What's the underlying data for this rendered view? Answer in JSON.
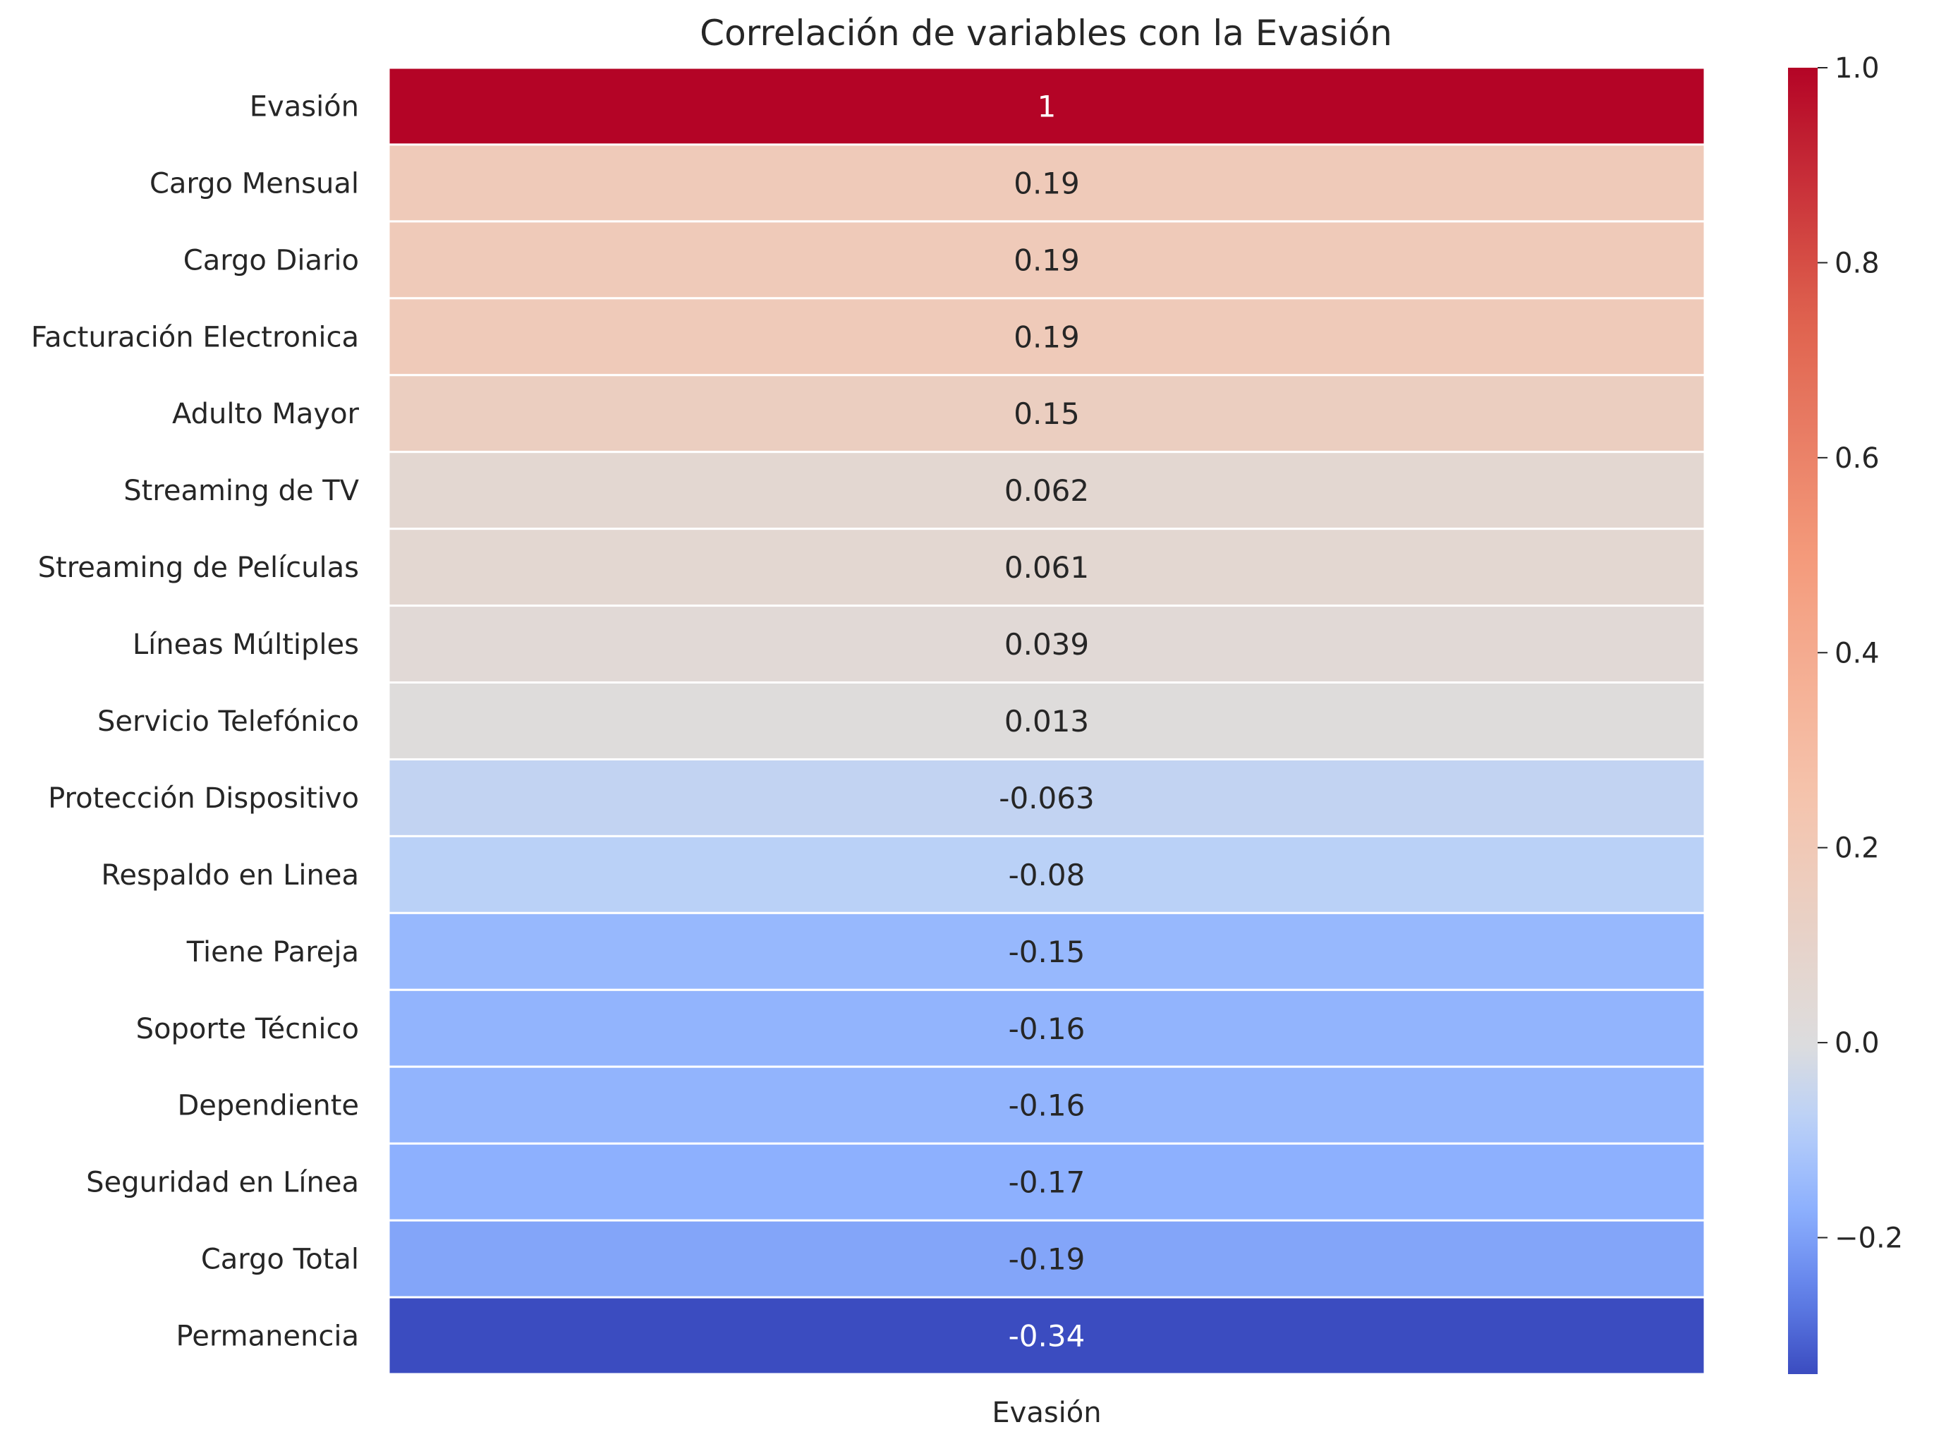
{
  "chart_data": {
    "type": "heatmap",
    "title": "Correlación de variables con la Evasión",
    "xlabel": "",
    "ylabel": "",
    "columns": [
      "Evasión"
    ],
    "rows": [
      "Evasión",
      "Cargo Mensual",
      "Cargo Diario",
      "Facturación Electronica",
      "Adulto Mayor",
      "Streaming de TV",
      "Streaming de Películas",
      "Líneas Múltiples",
      "Servicio Telefónico",
      "Protección Dispositivo",
      "Respaldo en Linea",
      "Tiene Pareja",
      "Soporte Técnico",
      "Dependiente",
      "Seguridad en Línea",
      "Cargo Total",
      "Permanencia"
    ],
    "values": [
      1,
      0.19,
      0.19,
      0.19,
      0.15,
      0.062,
      0.061,
      0.039,
      0.013,
      -0.063,
      -0.08,
      -0.15,
      -0.16,
      -0.16,
      -0.17,
      -0.19,
      -0.34
    ],
    "annotations": [
      "1",
      "0.19",
      "0.19",
      "0.19",
      "0.15",
      "0.062",
      "0.061",
      "0.039",
      "0.013",
      "-0.063",
      "-0.08",
      "-0.15",
      "-0.16",
      "-0.16",
      "-0.17",
      "-0.19",
      "-0.34"
    ],
    "colormap": "coolwarm",
    "colorbar": {
      "range": [
        -0.34,
        1.0
      ],
      "ticks": [
        1.0,
        0.8,
        0.6,
        0.4,
        0.2,
        0.0,
        -0.2
      ],
      "tick_labels": [
        "1.0",
        "0.8",
        "0.6",
        "0.4",
        "0.2",
        "0.0",
        "−0.2"
      ],
      "placement": "right"
    },
    "grid": false,
    "cell_separator_color": "#ffffff"
  }
}
